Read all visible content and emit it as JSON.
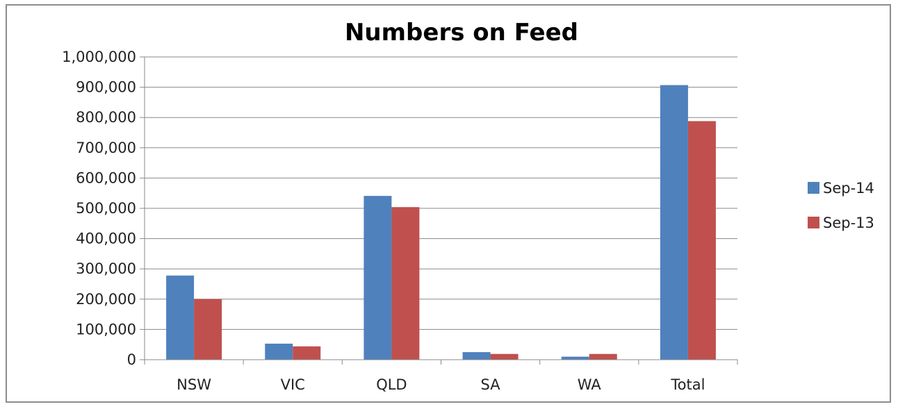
{
  "chart_data": {
    "type": "bar",
    "title": "Numbers on Feed",
    "xlabel": "",
    "ylabel": "",
    "categories": [
      "NSW",
      "VIC",
      "QLD",
      "SA",
      "WA",
      "Total"
    ],
    "series": [
      {
        "name": "Sep-14",
        "color": "#4f81bd",
        "values": [
          278000,
          53000,
          541000,
          25000,
          10000,
          907000
        ]
      },
      {
        "name": "Sep-13",
        "color": "#c0504d",
        "values": [
          200000,
          44000,
          504000,
          19000,
          19000,
          788000
        ]
      }
    ],
    "ylim": [
      0,
      1000000
    ],
    "yticks": [
      "0",
      "100,000",
      "200,000",
      "300,000",
      "400,000",
      "500,000",
      "600,000",
      "700,000",
      "800,000",
      "900,000",
      "1,000,000"
    ],
    "grid": true,
    "legend_position": "right"
  }
}
